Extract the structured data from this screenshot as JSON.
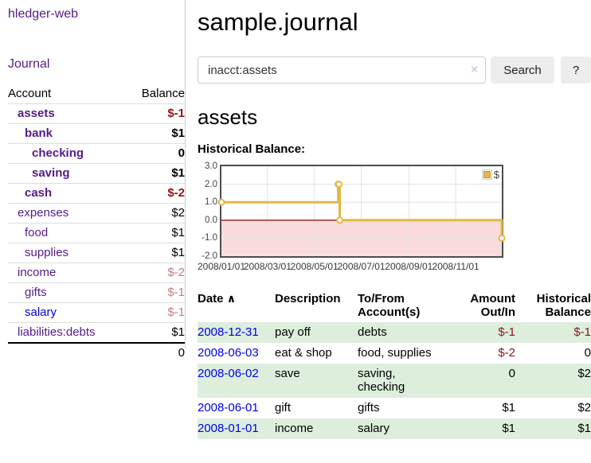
{
  "app": {
    "brand": "hledger-web"
  },
  "sidebar": {
    "journal_link": "Journal",
    "accounts": {
      "account_header": "Account",
      "balance_header": "Balance",
      "rows": [
        {
          "name": "assets",
          "balance": "$-1"
        },
        {
          "name": "bank",
          "balance": "$1"
        },
        {
          "name": "checking",
          "balance": "0"
        },
        {
          "name": "saving",
          "balance": "$1"
        },
        {
          "name": "cash",
          "balance": "$-2"
        },
        {
          "name": "expenses",
          "balance": "$2"
        },
        {
          "name": "food",
          "balance": "$1"
        },
        {
          "name": "supplies",
          "balance": "$1"
        },
        {
          "name": "income",
          "balance": "$-2"
        },
        {
          "name": "gifts",
          "balance": "$-1"
        },
        {
          "name": "salary",
          "balance": "$-1"
        },
        {
          "name": "liabilities:debts",
          "balance": "$1"
        }
      ],
      "total": "0"
    }
  },
  "main": {
    "title": "sample.journal",
    "search": {
      "value": "inacct:assets",
      "clear_icon": "×",
      "search_button": "Search",
      "help_button": "?"
    },
    "account_heading": "assets",
    "chart_title": "Historical Balance:"
  },
  "chart_data": {
    "type": "line",
    "step": true,
    "title": "Historical Balance",
    "legend": [
      {
        "label": "$",
        "color": "#e4b646"
      }
    ],
    "legend_position": "top-right",
    "grid": true,
    "ylim": [
      -2,
      3
    ],
    "y_ticks": [
      "3.0",
      "2.0",
      "1.0",
      "0.0",
      "-1.0",
      "-2.0"
    ],
    "x_range": [
      "2008-01-01",
      "2008-12-31"
    ],
    "x_ticks": [
      "2008/01/01",
      "2008/03/01",
      "2008/05/01",
      "2008/07/01",
      "2008/09/01",
      "2008/11/01"
    ],
    "series": [
      {
        "name": "$",
        "points": [
          [
            "2008-01-01",
            1
          ],
          [
            "2008-06-01",
            2
          ],
          [
            "2008-06-02",
            2
          ],
          [
            "2008-06-03",
            0
          ],
          [
            "2008-12-31",
            -1
          ]
        ]
      }
    ],
    "line_color": "#e4b646",
    "marker_fill": "#ffffff",
    "zero_line_color": "#8b1a1a",
    "negative_region_color": "#fbdcdc"
  },
  "register": {
    "headers": {
      "date": "Date",
      "sort_icon": "∧",
      "description": "Description",
      "accounts": "To/From Account(s)",
      "amount": "Amount Out/In",
      "balance": "Historical Balance"
    },
    "rows": [
      {
        "date": "2008-12-31",
        "description": "pay off",
        "accounts": "debts",
        "amount": "$-1",
        "balance": "$-1"
      },
      {
        "date": "2008-06-03",
        "description": "eat & shop",
        "accounts": "food, supplies",
        "amount": "$-2",
        "balance": "0"
      },
      {
        "date": "2008-06-02",
        "description": "save",
        "accounts": "saving, checking",
        "amount": "0",
        "balance": "$2"
      },
      {
        "date": "2008-06-01",
        "description": "gift",
        "accounts": "gifts",
        "amount": "$1",
        "balance": "$2"
      },
      {
        "date": "2008-01-01",
        "description": "income",
        "accounts": "salary",
        "amount": "$1",
        "balance": "$1"
      }
    ]
  }
}
